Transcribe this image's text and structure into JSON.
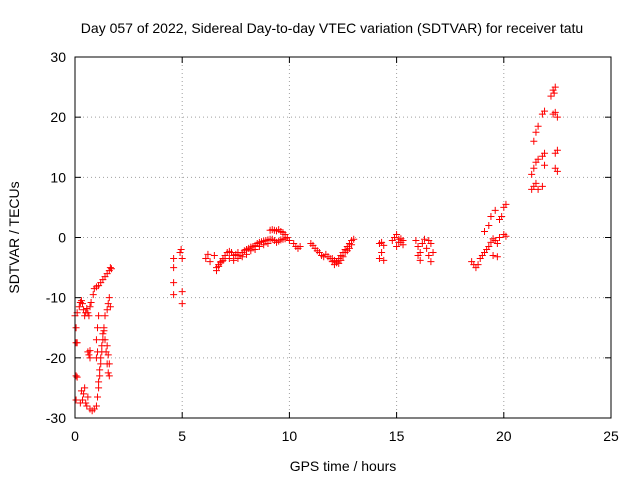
{
  "chart_data": {
    "type": "scatter",
    "title": "Day 057 of 2022, Sidereal Day-to-day VTEC variation (SDTVAR) for receiver tatu",
    "xlabel": "GPS time / hours",
    "ylabel": "SDTVAR / TECUs",
    "xlim": [
      0,
      25
    ],
    "ylim": [
      -30,
      30
    ],
    "xticks": [
      0,
      5,
      10,
      15,
      20,
      25
    ],
    "yticks": [
      -30,
      -20,
      -10,
      0,
      10,
      20,
      30
    ],
    "grid": true,
    "marker": "plus",
    "color": "#ff0000",
    "series": [
      {
        "name": "SDTVAR",
        "points": [
          [
            0.0,
            -13
          ],
          [
            0.05,
            -15
          ],
          [
            0.05,
            -17.5
          ],
          [
            0.05,
            -23
          ],
          [
            0.05,
            -27
          ],
          [
            0.1,
            -12.5
          ],
          [
            0.1,
            -17.5
          ],
          [
            0.1,
            -23.2
          ],
          [
            0.2,
            -11.5
          ],
          [
            0.25,
            -10.8
          ],
          [
            0.3,
            -10.5
          ],
          [
            0.35,
            -11
          ],
          [
            0.4,
            -12
          ],
          [
            0.45,
            -13
          ],
          [
            0.5,
            -12.5
          ],
          [
            0.55,
            -11.8
          ],
          [
            0.6,
            -12.5
          ],
          [
            0.65,
            -13
          ],
          [
            0.7,
            -11.5
          ],
          [
            0.75,
            -10.8
          ],
          [
            0.25,
            -27.5
          ],
          [
            0.3,
            -25.5
          ],
          [
            0.35,
            -27
          ],
          [
            0.4,
            -26
          ],
          [
            0.45,
            -25
          ],
          [
            0.5,
            -27.5
          ],
          [
            0.55,
            -28
          ],
          [
            0.6,
            -26.5
          ],
          [
            0.6,
            -19
          ],
          [
            0.65,
            -19.5
          ],
          [
            0.7,
            -18.8
          ],
          [
            0.7,
            -20
          ],
          [
            0.7,
            -28.5
          ],
          [
            0.8,
            -28.8
          ],
          [
            0.9,
            -28.5
          ],
          [
            1.0,
            -28.0
          ],
          [
            1.05,
            -26.5
          ],
          [
            1.1,
            -25.0
          ],
          [
            1.15,
            -23
          ],
          [
            1.2,
            -21
          ],
          [
            1.25,
            -19
          ],
          [
            1.3,
            -17
          ],
          [
            1.35,
            -15
          ],
          [
            1.4,
            -13
          ],
          [
            1.5,
            -12
          ],
          [
            1.55,
            -11
          ],
          [
            1.6,
            -10
          ],
          [
            1.65,
            -11.5
          ],
          [
            1.1,
            -24
          ],
          [
            1.15,
            -22
          ],
          [
            1.2,
            -20
          ],
          [
            1.25,
            -18
          ],
          [
            1.3,
            -16
          ],
          [
            1.35,
            -15.5
          ],
          [
            1.4,
            -17
          ],
          [
            1.45,
            -19
          ],
          [
            1.5,
            -21
          ],
          [
            1.55,
            -22.5
          ],
          [
            1.6,
            -23
          ],
          [
            1.6,
            -21
          ],
          [
            1.55,
            -19.5
          ],
          [
            1.5,
            -18
          ],
          [
            0.85,
            -9.5
          ],
          [
            0.9,
            -8.5
          ],
          [
            1.0,
            -8.2
          ],
          [
            1.1,
            -8.0
          ],
          [
            1.2,
            -7.5
          ],
          [
            1.3,
            -7.0
          ],
          [
            1.4,
            -6.5
          ],
          [
            1.5,
            -6.0
          ],
          [
            1.6,
            -5.5
          ],
          [
            1.65,
            -5.0
          ],
          [
            1.7,
            -5.2
          ],
          [
            1.0,
            -20
          ],
          [
            1.05,
            -19
          ],
          [
            1.0,
            -17
          ],
          [
            1.05,
            -15
          ],
          [
            1.1,
            -13
          ],
          [
            4.6,
            -3.5
          ],
          [
            4.6,
            -5
          ],
          [
            4.6,
            -7.5
          ],
          [
            4.6,
            -9.5
          ],
          [
            4.9,
            -2.5
          ],
          [
            4.95,
            -2
          ],
          [
            5.0,
            -3.5
          ],
          [
            5.0,
            -9
          ],
          [
            5.0,
            -11
          ],
          [
            6.1,
            -3.5
          ],
          [
            6.2,
            -2.8
          ],
          [
            6.3,
            -4
          ],
          [
            6.5,
            -3
          ],
          [
            6.6,
            -5
          ],
          [
            6.7,
            -4.5
          ],
          [
            6.8,
            -4
          ],
          [
            6.9,
            -3.5
          ],
          [
            7.0,
            -3
          ],
          [
            7.1,
            -2.5
          ],
          [
            7.2,
            -2.3
          ],
          [
            7.3,
            -2.5
          ],
          [
            7.4,
            -3
          ],
          [
            7.5,
            -2.8
          ],
          [
            7.6,
            -2.5
          ],
          [
            7.7,
            -3
          ],
          [
            7.8,
            -2.5
          ],
          [
            7.9,
            -2.2
          ],
          [
            8.0,
            -2
          ],
          [
            8.1,
            -1.8
          ],
          [
            8.2,
            -1.6
          ],
          [
            8.3,
            -1.5
          ],
          [
            8.4,
            -1.3
          ],
          [
            8.5,
            -1.0
          ],
          [
            8.6,
            -0.8
          ],
          [
            8.7,
            -0.7
          ],
          [
            8.8,
            -0.6
          ],
          [
            8.9,
            -0.5
          ],
          [
            9.0,
            -0.4
          ],
          [
            9.1,
            -0.3
          ],
          [
            9.2,
            -0.3
          ],
          [
            9.3,
            -0.5
          ],
          [
            6.6,
            -5.5
          ],
          [
            6.7,
            -4.8
          ],
          [
            6.8,
            -4.2
          ],
          [
            6.9,
            -3.8
          ],
          [
            7.0,
            -3.5
          ],
          [
            7.2,
            -3.5
          ],
          [
            7.4,
            -3.8
          ],
          [
            7.6,
            -3.5
          ],
          [
            7.8,
            -3.2
          ],
          [
            8.0,
            -2.8
          ],
          [
            8.2,
            -2.2
          ],
          [
            8.4,
            -2.0
          ],
          [
            8.6,
            -1.5
          ],
          [
            8.8,
            -1.2
          ],
          [
            9.0,
            -1.0
          ],
          [
            9.1,
            1.2
          ],
          [
            9.2,
            1.3
          ],
          [
            9.3,
            1.2
          ],
          [
            9.4,
            1.1
          ],
          [
            9.5,
            1.3
          ],
          [
            9.6,
            1.0
          ],
          [
            9.7,
            0.8
          ],
          [
            9.8,
            0.5
          ],
          [
            9.4,
            -0.8
          ],
          [
            9.5,
            -0.6
          ],
          [
            9.6,
            -0.4
          ],
          [
            9.7,
            -0.3
          ],
          [
            9.8,
            -0.2
          ],
          [
            9.9,
            0
          ],
          [
            10.0,
            -0.5
          ],
          [
            10.2,
            -1.0
          ],
          [
            10.3,
            -1.5
          ],
          [
            10.4,
            -1.8
          ],
          [
            10.5,
            -1.5
          ],
          [
            11.0,
            -1.0
          ],
          [
            11.1,
            -1.3
          ],
          [
            11.2,
            -1.8
          ],
          [
            11.3,
            -2.2
          ],
          [
            11.4,
            -2.5
          ],
          [
            11.5,
            -3.0
          ],
          [
            11.6,
            -3.2
          ],
          [
            11.7,
            -2.8
          ],
          [
            11.8,
            -3.2
          ],
          [
            11.9,
            -3.5
          ],
          [
            12.0,
            -4.0
          ],
          [
            12.1,
            -4.5
          ],
          [
            12.2,
            -4.2
          ],
          [
            12.3,
            -3.5
          ],
          [
            12.4,
            -3.0
          ],
          [
            12.5,
            -2.5
          ],
          [
            12.6,
            -2.0
          ],
          [
            12.7,
            -1.5
          ],
          [
            12.8,
            -1.0
          ],
          [
            12.9,
            -0.5
          ],
          [
            13.0,
            -0.3
          ],
          [
            12.0,
            -3.5
          ],
          [
            12.1,
            -3.8
          ],
          [
            12.2,
            -4.0
          ],
          [
            12.3,
            -4.3
          ],
          [
            12.4,
            -3.8
          ],
          [
            12.5,
            -3.2
          ],
          [
            12.6,
            -2.5
          ],
          [
            12.7,
            -2.2
          ],
          [
            12.8,
            -1.8
          ],
          [
            12.9,
            -1.2
          ],
          [
            14.2,
            -1.0
          ],
          [
            14.3,
            -0.8
          ],
          [
            14.4,
            -1.3
          ],
          [
            14.3,
            -2.5
          ],
          [
            14.2,
            -3.5
          ],
          [
            14.4,
            -3.8
          ],
          [
            14.8,
            -0.5
          ],
          [
            14.9,
            0
          ],
          [
            15.0,
            0.5
          ],
          [
            15.1,
            -0.3
          ],
          [
            15.2,
            -0.8
          ],
          [
            15.3,
            -1.2
          ],
          [
            15.0,
            -1.5
          ],
          [
            15.1,
            -0.8
          ],
          [
            15.2,
            -0.2
          ],
          [
            15.3,
            -0.5
          ],
          [
            15.9,
            -0.5
          ],
          [
            16.0,
            -1.5
          ],
          [
            16.1,
            -2.5
          ],
          [
            16.2,
            -1.0
          ],
          [
            16.3,
            -0.3
          ],
          [
            16.4,
            -1.8
          ],
          [
            16.5,
            -3.0
          ],
          [
            16.6,
            -4.0
          ],
          [
            16.7,
            -2.5
          ],
          [
            16.6,
            -1.0
          ],
          [
            16.5,
            -0.5
          ],
          [
            16.0,
            -3.0
          ],
          [
            16.1,
            -3.8
          ],
          [
            18.5,
            -4.0
          ],
          [
            18.6,
            -4.5
          ],
          [
            18.7,
            -5.0
          ],
          [
            18.8,
            -4.5
          ],
          [
            18.9,
            -3.5
          ],
          [
            19.0,
            -3.0
          ],
          [
            19.1,
            -2.5
          ],
          [
            19.2,
            -2.0
          ],
          [
            19.3,
            -1.5
          ],
          [
            19.4,
            -0.8
          ],
          [
            19.5,
            -0.2
          ],
          [
            19.6,
            -0.5
          ],
          [
            19.7,
            -1.0
          ],
          [
            19.1,
            1.0
          ],
          [
            19.3,
            2.0
          ],
          [
            19.4,
            3.5
          ],
          [
            19.6,
            4.5
          ],
          [
            19.8,
            3.0
          ],
          [
            19.9,
            3.5
          ],
          [
            20.0,
            5.0
          ],
          [
            20.1,
            5.5
          ],
          [
            19.8,
            0
          ],
          [
            20.0,
            0.5
          ],
          [
            20.1,
            0.2
          ],
          [
            19.5,
            -3.0
          ],
          [
            19.7,
            -3.2
          ],
          [
            21.3,
            8.0
          ],
          [
            21.4,
            8.5
          ],
          [
            21.5,
            9.0
          ],
          [
            21.6,
            8.0
          ],
          [
            21.8,
            8.5
          ],
          [
            21.3,
            10.5
          ],
          [
            21.4,
            11.5
          ],
          [
            21.5,
            12.5
          ],
          [
            21.6,
            13.0
          ],
          [
            21.8,
            13.5
          ],
          [
            21.9,
            14.0
          ],
          [
            21.4,
            16.0
          ],
          [
            21.5,
            17.5
          ],
          [
            21.6,
            18.5
          ],
          [
            21.8,
            20.5
          ],
          [
            21.9,
            21.0
          ],
          [
            21.9,
            12.0
          ],
          [
            22.4,
            11.5
          ],
          [
            22.5,
            11.0
          ],
          [
            22.4,
            14.0
          ],
          [
            22.5,
            14.5
          ],
          [
            22.3,
            20.5
          ],
          [
            22.4,
            20.8
          ],
          [
            22.5,
            20.0
          ],
          [
            22.2,
            23.5
          ],
          [
            22.3,
            24.5
          ],
          [
            22.35,
            24.0
          ],
          [
            22.4,
            25.0
          ]
        ]
      }
    ]
  }
}
